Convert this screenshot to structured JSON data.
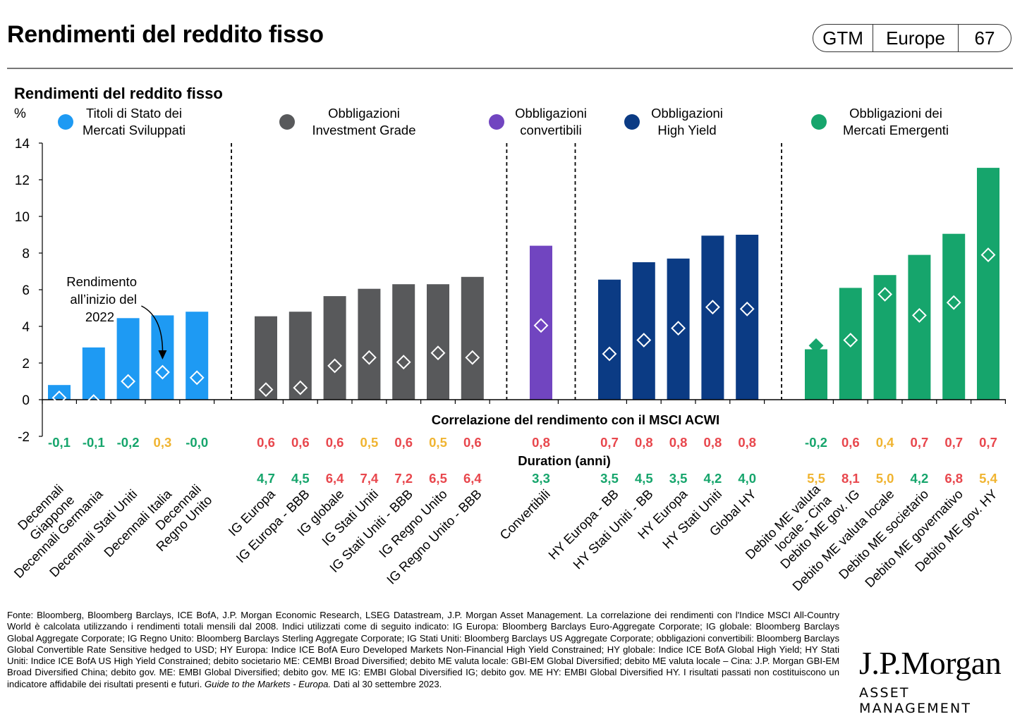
{
  "header": {
    "title": "Rendimenti del reddito fisso",
    "badge": [
      "GTM",
      "Europe",
      "67"
    ]
  },
  "chart_data": {
    "type": "bar",
    "title": "Rendimenti del reddito fisso",
    "ylabel": "%",
    "ylim": [
      -2,
      14
    ],
    "yticks": [
      -2,
      0,
      2,
      4,
      6,
      8,
      10,
      12,
      14
    ],
    "groups": [
      {
        "name": "Titoli di Stato dei Mercati Sviluppati",
        "color": "#1e9af3",
        "start": 0,
        "end": 4
      },
      {
        "name": "Obbligazioni Investment Grade",
        "color": "#58595b",
        "start": 5,
        "end": 11
      },
      {
        "name": "Obbligazioni convertibili",
        "color": "#7145c0",
        "start": 12,
        "end": 12
      },
      {
        "name": "Obbligazioni High Yield",
        "color": "#0b3b84",
        "start": 13,
        "end": 17
      },
      {
        "name": "Obbligazioni dei Mercati Emergenti",
        "color": "#16a56c",
        "start": 18,
        "end": 23
      }
    ],
    "categories": [
      "Decennali Giappone",
      "Decennali Germania",
      "Decennali Stati Uniti",
      "Decennali Italia",
      "Decennali Regno Unito",
      "IG Europa",
      "IG Europa - BBB",
      "IG globale",
      "IG Stati Uniti",
      "IG Stati Uniti - BBB",
      "IG Regno Unito",
      "IG Regno Unito - BBB",
      "Convertibili",
      "HY Europa - BB",
      "HY Stati Uniti - BB",
      "HY Europa",
      "HY Stati Uniti",
      "Global HY",
      "Debito ME valuta locale - Cina",
      "Debito ME gov. IG",
      "Debito ME valuta locale",
      "Debito ME societario",
      "Debito ME governativo",
      "Debito ME gov. HY"
    ],
    "x_labels": [
      [
        "Decennali",
        "Giappone"
      ],
      [
        "Decennali Germania"
      ],
      [
        "Decennali Stati Uniti"
      ],
      [
        "Decennali Italia"
      ],
      [
        "Decennali",
        "Regno Unito"
      ],
      [
        "IG Europa"
      ],
      [
        "IG Europa - BBB"
      ],
      [
        "IG globale"
      ],
      [
        "IG Stati Uniti"
      ],
      [
        "IG Stati Uniti - BBB"
      ],
      [
        "IG Regno Unito"
      ],
      [
        "IG Regno Unito - BBB"
      ],
      [
        "Convertibili"
      ],
      [
        "HY Europa - BB"
      ],
      [
        "HY Stati Uniti - BB"
      ],
      [
        "HY Europa"
      ],
      [
        "HY Stati Uniti"
      ],
      [
        "Global HY"
      ],
      [
        "Debito ME valuta",
        "locale - Cina"
      ],
      [
        "Debito ME gov. IG"
      ],
      [
        "Debito ME valuta locale"
      ],
      [
        "Debito ME societario"
      ],
      [
        "Debito ME governativo"
      ],
      [
        "Debito ME gov. HY"
      ]
    ],
    "series": [
      {
        "name": "",
        "type": "bar",
        "values": [
          0.8,
          2.85,
          4.45,
          4.6,
          4.8,
          4.55,
          4.8,
          5.65,
          6.05,
          6.3,
          6.3,
          6.7,
          8.4,
          6.55,
          7.5,
          7.7,
          8.95,
          9.0,
          2.75,
          6.1,
          6.8,
          7.9,
          9.05,
          12.65
        ]
      },
      {
        "name": "Rendimento all’inizio del 2022",
        "type": "marker",
        "values": [
          0.1,
          -0.1,
          1.0,
          1.5,
          1.2,
          0.55,
          0.65,
          1.85,
          2.3,
          2.05,
          2.55,
          2.3,
          4.05,
          2.5,
          3.25,
          3.9,
          5.05,
          4.95,
          2.95,
          3.25,
          5.75,
          4.6,
          5.3,
          7.9
        ]
      }
    ],
    "first_marker_filled": 18,
    "separators_after": [
      4,
      11,
      12,
      17
    ],
    "annotation": [
      "Rendimento",
      "all’inizio del",
      "2022"
    ],
    "annotation_target": 3,
    "correlation": {
      "label": "Correlazione del rendimento con il MSCI ACWI",
      "values": [
        "-0,1",
        "-0,1",
        "-0,2",
        "0,3",
        "-0,0",
        "0,6",
        "0,6",
        "0,6",
        "0,5",
        "0,6",
        "0,5",
        "0,6",
        "0,8",
        "0,7",
        "0,8",
        "0,8",
        "0,8",
        "0,8",
        "-0,2",
        "0,6",
        "0,4",
        "0,7",
        "0,7",
        "0,7"
      ],
      "colors": [
        "#16a56c",
        "#16a56c",
        "#16a56c",
        "#f0b431",
        "#16a56c",
        "#e8474d",
        "#e8474d",
        "#e8474d",
        "#f0b431",
        "#e8474d",
        "#f0b431",
        "#e8474d",
        "#e8474d",
        "#e8474d",
        "#e8474d",
        "#e8474d",
        "#e8474d",
        "#e8474d",
        "#16a56c",
        "#e8474d",
        "#f0b431",
        "#e8474d",
        "#e8474d",
        "#e8474d"
      ]
    },
    "duration": {
      "label": "Duration (anni)",
      "values": [
        "",
        "",
        "",
        "",
        "",
        "4,7",
        "4,5",
        "6,4",
        "7,4",
        "7,2",
        "6,5",
        "6,4",
        "3,3",
        "3,5",
        "4,5",
        "3,5",
        "4,2",
        "4,0",
        "5,5",
        "8,1",
        "5,0",
        "4,2",
        "6,8",
        "5,4"
      ],
      "colors": [
        "",
        "",
        "",
        "",
        "",
        "#16a56c",
        "#16a56c",
        "#e8474d",
        "#e8474d",
        "#e8474d",
        "#e8474d",
        "#e8474d",
        "#16a56c",
        "#16a56c",
        "#16a56c",
        "#16a56c",
        "#16a56c",
        "#16a56c",
        "#f0b431",
        "#e8474d",
        "#f0b431",
        "#16a56c",
        "#e8474d",
        "#f0b431"
      ]
    },
    "legend": [
      {
        "lines": [
          "Titoli di Stato dei",
          "Mercati Sviluppati"
        ],
        "color": "#1e9af3"
      },
      {
        "lines": [
          "Obbligazioni",
          "Investment Grade"
        ],
        "color": "#58595b"
      },
      {
        "lines": [
          "Obbligazioni",
          "convertibili"
        ],
        "color": "#7145c0"
      },
      {
        "lines": [
          "Obbligazioni",
          "High Yield"
        ],
        "color": "#0b3b84"
      },
      {
        "lines": [
          "Obbligazioni dei",
          "Mercati Emergenti"
        ],
        "color": "#16a56c"
      }
    ],
    "grid": false
  },
  "footnote": {
    "text": "Fonte: Bloomberg, Bloomberg Barclays, ICE BofA, J.P. Morgan Economic Research, LSEG Datastream, J.P. Morgan Asset Management. La correlazione dei rendimenti con l'Indice MSCI All-Country World è calcolata utilizzando i rendimenti totali mensili dal 2008. Indici utilizzati come di seguito indicato: IG Europa: Bloomberg Barclays Euro-Aggregate Corporate; IG globale: Bloomberg Barclays Global Aggregate Corporate; IG Regno Unito: Bloomberg Barclays Sterling Aggregate Corporate; IG Stati Uniti: Bloomberg Barclays US Aggregate Corporate; obbligazioni convertibili: Bloomberg Barclays Global Convertible Rate Sensitive hedged to USD; HY Europa: Indice ICE BofA Euro Developed Markets Non-Financial High Yield Constrained; HY globale: Indice ICE BofA Global High Yield; HY Stati Uniti: Indice ICE BofA US High Yield Constrained; debito societario ME: CEMBI Broad Diversified; debito ME valuta locale: GBI-EM Global Diversified; debito ME valuta locale – Cina: J.P. Morgan GBI-EM Broad Diversified China; debito gov. ME: EMBI Global Diversified; debito gov. ME IG: EMBI Global Diversified IG; debito gov. ME HY: EMBI Global Diversified HY. I risultati passati non costituiscono un indicatore affidabile dei risultati presenti e futuri.",
    "italic": "Guide to the Markets - Europa.",
    "tail": "Dati al 30 settembre 2023."
  },
  "logo": {
    "line1": "J.P.Morgan",
    "line2": "ASSET MANAGEMENT"
  }
}
